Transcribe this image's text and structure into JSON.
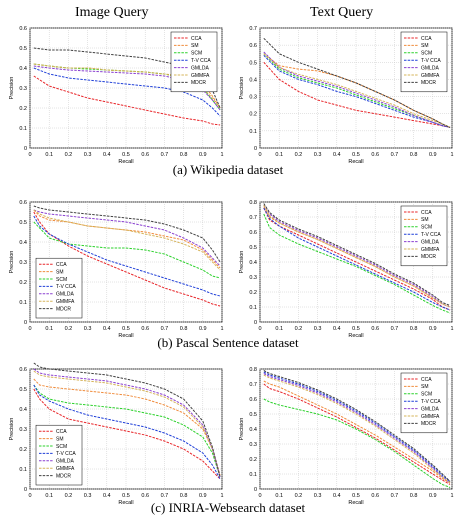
{
  "column_titles": {
    "left": "Image Query",
    "right": "Text Query"
  },
  "captions": [
    "(a) Wikipedia dataset",
    "(b) Pascal Sentence dataset",
    "(c) INRIA-Websearch dataset"
  ],
  "series_styles": [
    {
      "name": "CCA",
      "color": "#e8262a"
    },
    {
      "name": "SM",
      "color": "#f08c3c"
    },
    {
      "name": "SCM",
      "color": "#2bd12b"
    },
    {
      "name": "T-V CCA",
      "color": "#1f3fd8"
    },
    {
      "name": "GMLDA",
      "color": "#8a3fd0"
    },
    {
      "name": "GMMFA",
      "color": "#d6b45a"
    },
    {
      "name": "MDCR",
      "color": "#404040"
    }
  ],
  "chart_data": [
    {
      "type": "line",
      "xlabel": "Recall",
      "ylabel": "Precision",
      "xlim": [
        0,
        1
      ],
      "ylim": [
        0,
        0.6
      ],
      "xticks": [
        "0",
        "0.1",
        "0.2",
        "0.3",
        "0.4",
        "0.5",
        "0.6",
        "0.7",
        "0.8",
        "0.9",
        "1"
      ],
      "yticks": [
        "0",
        "0.1",
        "0.2",
        "0.3",
        "0.4",
        "0.5",
        "0.6"
      ],
      "legend": "top-right",
      "x": [
        0.02,
        0.1,
        0.2,
        0.3,
        0.4,
        0.5,
        0.6,
        0.7,
        0.8,
        0.9,
        0.95,
        0.99
      ],
      "series": [
        {
          "name": "CCA",
          "values": [
            0.36,
            0.31,
            0.28,
            0.25,
            0.23,
            0.21,
            0.19,
            0.17,
            0.15,
            0.135,
            0.12,
            0.115
          ]
        },
        {
          "name": "SM",
          "values": [
            0.42,
            0.41,
            0.4,
            0.4,
            0.39,
            0.385,
            0.38,
            0.37,
            0.36,
            0.32,
            0.26,
            0.2
          ]
        },
        {
          "name": "SCM",
          "values": [
            0.42,
            0.41,
            0.4,
            0.395,
            0.39,
            0.385,
            0.38,
            0.37,
            0.35,
            0.3,
            0.24,
            0.19
          ]
        },
        {
          "name": "T-V CCA",
          "values": [
            0.4,
            0.37,
            0.35,
            0.34,
            0.33,
            0.32,
            0.31,
            0.3,
            0.28,
            0.24,
            0.2,
            0.16
          ]
        },
        {
          "name": "GMLDA",
          "values": [
            0.41,
            0.4,
            0.39,
            0.385,
            0.38,
            0.375,
            0.37,
            0.36,
            0.34,
            0.29,
            0.24,
            0.19
          ]
        },
        {
          "name": "GMMFA",
          "values": [
            0.42,
            0.41,
            0.4,
            0.4,
            0.39,
            0.385,
            0.38,
            0.37,
            0.35,
            0.3,
            0.25,
            0.2
          ]
        },
        {
          "name": "MDCR",
          "values": [
            0.5,
            0.49,
            0.49,
            0.48,
            0.47,
            0.46,
            0.45,
            0.43,
            0.41,
            0.37,
            0.29,
            0.2
          ]
        }
      ]
    },
    {
      "type": "line",
      "xlabel": "Recall",
      "ylabel": "Precision",
      "xlim": [
        0,
        1
      ],
      "ylim": [
        0,
        0.7
      ],
      "xticks": [
        "0",
        "0.1",
        "0.2",
        "0.3",
        "0.4",
        "0.5",
        "0.6",
        "0.7",
        "0.8",
        "0.9",
        "1"
      ],
      "yticks": [
        "0",
        "0.1",
        "0.2",
        "0.3",
        "0.4",
        "0.5",
        "0.6",
        "0.7"
      ],
      "legend": "top-right",
      "x": [
        0.02,
        0.1,
        0.2,
        0.3,
        0.4,
        0.5,
        0.6,
        0.7,
        0.8,
        0.9,
        0.95,
        0.99
      ],
      "series": [
        {
          "name": "CCA",
          "values": [
            0.5,
            0.4,
            0.33,
            0.28,
            0.25,
            0.22,
            0.2,
            0.18,
            0.16,
            0.14,
            0.13,
            0.12
          ]
        },
        {
          "name": "SM",
          "values": [
            0.55,
            0.48,
            0.46,
            0.45,
            0.42,
            0.38,
            0.33,
            0.28,
            0.22,
            0.17,
            0.14,
            0.12
          ]
        },
        {
          "name": "SCM",
          "values": [
            0.55,
            0.46,
            0.41,
            0.38,
            0.35,
            0.31,
            0.27,
            0.23,
            0.19,
            0.15,
            0.13,
            0.12
          ]
        },
        {
          "name": "T-V CCA",
          "values": [
            0.54,
            0.45,
            0.4,
            0.37,
            0.33,
            0.3,
            0.26,
            0.22,
            0.18,
            0.15,
            0.13,
            0.12
          ]
        },
        {
          "name": "GMLDA",
          "values": [
            0.56,
            0.47,
            0.42,
            0.39,
            0.36,
            0.32,
            0.28,
            0.24,
            0.19,
            0.15,
            0.13,
            0.12
          ]
        },
        {
          "name": "GMMFA",
          "values": [
            0.55,
            0.47,
            0.43,
            0.4,
            0.37,
            0.33,
            0.29,
            0.25,
            0.2,
            0.16,
            0.14,
            0.12
          ]
        },
        {
          "name": "MDCR",
          "values": [
            0.64,
            0.55,
            0.5,
            0.46,
            0.42,
            0.38,
            0.33,
            0.28,
            0.22,
            0.17,
            0.14,
            0.12
          ]
        }
      ]
    },
    {
      "type": "line",
      "xlabel": "Recall",
      "ylabel": "Precision",
      "xlim": [
        0,
        1
      ],
      "ylim": [
        0,
        0.6
      ],
      "xticks": [
        "0",
        "0.1",
        "0.2",
        "0.3",
        "0.4",
        "0.5",
        "0.6",
        "0.7",
        "0.8",
        "0.9",
        "1"
      ],
      "yticks": [
        "0",
        "0.1",
        "0.2",
        "0.3",
        "0.4",
        "0.5",
        "0.6"
      ],
      "legend": "bottom-left",
      "x": [
        0.02,
        0.05,
        0.1,
        0.2,
        0.3,
        0.4,
        0.5,
        0.6,
        0.7,
        0.8,
        0.9,
        0.95,
        0.99
      ],
      "series": [
        {
          "name": "CCA",
          "values": [
            0.55,
            0.5,
            0.44,
            0.38,
            0.33,
            0.29,
            0.25,
            0.21,
            0.17,
            0.14,
            0.11,
            0.09,
            0.08
          ]
        },
        {
          "name": "SM",
          "values": [
            0.56,
            0.53,
            0.51,
            0.5,
            0.48,
            0.47,
            0.46,
            0.45,
            0.43,
            0.41,
            0.36,
            0.31,
            0.27
          ]
        },
        {
          "name": "SCM",
          "values": [
            0.5,
            0.47,
            0.42,
            0.39,
            0.38,
            0.37,
            0.37,
            0.36,
            0.34,
            0.3,
            0.26,
            0.23,
            0.22
          ]
        },
        {
          "name": "T-V CCA",
          "values": [
            0.53,
            0.48,
            0.44,
            0.39,
            0.35,
            0.31,
            0.28,
            0.25,
            0.22,
            0.19,
            0.16,
            0.14,
            0.13
          ]
        },
        {
          "name": "GMLDA",
          "values": [
            0.56,
            0.55,
            0.54,
            0.53,
            0.52,
            0.51,
            0.5,
            0.48,
            0.46,
            0.42,
            0.37,
            0.32,
            0.28
          ]
        },
        {
          "name": "GMMFA",
          "values": [
            0.56,
            0.54,
            0.52,
            0.5,
            0.48,
            0.47,
            0.46,
            0.44,
            0.42,
            0.39,
            0.35,
            0.3,
            0.26
          ]
        },
        {
          "name": "MDCR",
          "values": [
            0.58,
            0.57,
            0.56,
            0.55,
            0.54,
            0.53,
            0.52,
            0.51,
            0.49,
            0.46,
            0.42,
            0.36,
            0.3
          ]
        }
      ]
    },
    {
      "type": "line",
      "xlabel": "Recall",
      "ylabel": "Precision",
      "xlim": [
        0,
        1
      ],
      "ylim": [
        0,
        0.8
      ],
      "xticks": [
        "0",
        "0.1",
        "0.2",
        "0.3",
        "0.4",
        "0.5",
        "0.6",
        "0.7",
        "0.8",
        "0.9",
        "1"
      ],
      "yticks": [
        "0",
        "0.1",
        "0.2",
        "0.3",
        "0.4",
        "0.5",
        "0.6",
        "0.7",
        "0.8"
      ],
      "legend": "top-right",
      "x": [
        0.02,
        0.05,
        0.1,
        0.2,
        0.3,
        0.4,
        0.5,
        0.6,
        0.7,
        0.8,
        0.9,
        0.95,
        0.99
      ],
      "series": [
        {
          "name": "CCA",
          "values": [
            0.76,
            0.68,
            0.64,
            0.58,
            0.52,
            0.46,
            0.4,
            0.34,
            0.28,
            0.22,
            0.15,
            0.1,
            0.08
          ]
        },
        {
          "name": "SM",
          "values": [
            0.77,
            0.7,
            0.66,
            0.6,
            0.55,
            0.49,
            0.43,
            0.37,
            0.3,
            0.24,
            0.16,
            0.12,
            0.1
          ]
        },
        {
          "name": "SCM",
          "values": [
            0.72,
            0.63,
            0.58,
            0.52,
            0.47,
            0.42,
            0.37,
            0.31,
            0.25,
            0.18,
            0.11,
            0.08,
            0.06
          ]
        },
        {
          "name": "T-V CCA",
          "values": [
            0.76,
            0.69,
            0.64,
            0.56,
            0.5,
            0.44,
            0.38,
            0.32,
            0.26,
            0.2,
            0.13,
            0.1,
            0.08
          ]
        },
        {
          "name": "GMLDA",
          "values": [
            0.78,
            0.72,
            0.67,
            0.61,
            0.56,
            0.5,
            0.44,
            0.38,
            0.31,
            0.25,
            0.17,
            0.12,
            0.1
          ]
        },
        {
          "name": "GMMFA",
          "values": [
            0.78,
            0.71,
            0.66,
            0.6,
            0.55,
            0.49,
            0.43,
            0.37,
            0.3,
            0.24,
            0.16,
            0.12,
            0.1
          ]
        },
        {
          "name": "MDCR",
          "values": [
            0.79,
            0.73,
            0.68,
            0.62,
            0.57,
            0.51,
            0.45,
            0.39,
            0.32,
            0.26,
            0.18,
            0.13,
            0.11
          ]
        }
      ]
    },
    {
      "type": "line",
      "xlabel": "Recall",
      "ylabel": "Precision",
      "xlim": [
        0,
        1
      ],
      "ylim": [
        0,
        0.6
      ],
      "xticks": [
        "0",
        "0.1",
        "0.2",
        "0.3",
        "0.4",
        "0.5",
        "0.6",
        "0.7",
        "0.8",
        "0.9",
        "1"
      ],
      "yticks": [
        "0",
        "0.1",
        "0.2",
        "0.3",
        "0.4",
        "0.5",
        "0.6"
      ],
      "legend": "bottom-left",
      "x": [
        0.02,
        0.05,
        0.1,
        0.2,
        0.3,
        0.4,
        0.5,
        0.6,
        0.7,
        0.8,
        0.9,
        0.95,
        0.99
      ],
      "series": [
        {
          "name": "CCA",
          "values": [
            0.5,
            0.45,
            0.4,
            0.35,
            0.33,
            0.31,
            0.29,
            0.27,
            0.24,
            0.2,
            0.14,
            0.09,
            0.05
          ]
        },
        {
          "name": "SM",
          "values": [
            0.55,
            0.52,
            0.51,
            0.5,
            0.49,
            0.48,
            0.47,
            0.45,
            0.42,
            0.38,
            0.3,
            0.2,
            0.07
          ]
        },
        {
          "name": "SCM",
          "values": [
            0.52,
            0.48,
            0.45,
            0.43,
            0.42,
            0.41,
            0.4,
            0.38,
            0.36,
            0.32,
            0.26,
            0.18,
            0.06
          ]
        },
        {
          "name": "T-V CCA",
          "values": [
            0.52,
            0.47,
            0.44,
            0.4,
            0.37,
            0.35,
            0.33,
            0.31,
            0.28,
            0.24,
            0.18,
            0.12,
            0.05
          ]
        },
        {
          "name": "GMLDA",
          "values": [
            0.6,
            0.58,
            0.57,
            0.56,
            0.55,
            0.54,
            0.52,
            0.5,
            0.47,
            0.42,
            0.32,
            0.2,
            0.06
          ]
        },
        {
          "name": "GMMFA",
          "values": [
            0.59,
            0.57,
            0.56,
            0.55,
            0.54,
            0.53,
            0.51,
            0.49,
            0.46,
            0.41,
            0.31,
            0.2,
            0.06
          ]
        },
        {
          "name": "MDCR",
          "values": [
            0.63,
            0.61,
            0.6,
            0.59,
            0.58,
            0.57,
            0.55,
            0.53,
            0.5,
            0.45,
            0.34,
            0.21,
            0.06
          ]
        }
      ]
    },
    {
      "type": "line",
      "xlabel": "Recall",
      "ylabel": "Precision",
      "xlim": [
        0,
        1
      ],
      "ylim": [
        0,
        0.8
      ],
      "xticks": [
        "0",
        "0.1",
        "0.2",
        "0.3",
        "0.4",
        "0.5",
        "0.6",
        "0.7",
        "0.8",
        "0.9",
        "1"
      ],
      "yticks": [
        "0",
        "0.1",
        "0.2",
        "0.3",
        "0.4",
        "0.5",
        "0.6",
        "0.7",
        "0.8"
      ],
      "legend": "top-right",
      "x": [
        0.02,
        0.05,
        0.1,
        0.2,
        0.3,
        0.4,
        0.5,
        0.6,
        0.7,
        0.8,
        0.9,
        0.95,
        0.99
      ],
      "series": [
        {
          "name": "CCA",
          "values": [
            0.7,
            0.67,
            0.65,
            0.6,
            0.54,
            0.48,
            0.41,
            0.34,
            0.26,
            0.18,
            0.1,
            0.06,
            0.03
          ]
        },
        {
          "name": "SM",
          "values": [
            0.72,
            0.7,
            0.68,
            0.62,
            0.56,
            0.5,
            0.43,
            0.36,
            0.28,
            0.2,
            0.12,
            0.07,
            0.04
          ]
        },
        {
          "name": "SCM",
          "values": [
            0.6,
            0.58,
            0.56,
            0.53,
            0.5,
            0.46,
            0.4,
            0.33,
            0.25,
            0.16,
            0.07,
            0.03,
            0.01
          ]
        },
        {
          "name": "T-V CCA",
          "values": [
            0.78,
            0.76,
            0.74,
            0.7,
            0.65,
            0.59,
            0.52,
            0.44,
            0.35,
            0.26,
            0.15,
            0.09,
            0.05
          ]
        },
        {
          "name": "GMLDA",
          "values": [
            0.77,
            0.75,
            0.73,
            0.69,
            0.64,
            0.58,
            0.51,
            0.43,
            0.34,
            0.25,
            0.14,
            0.08,
            0.04
          ]
        },
        {
          "name": "GMMFA",
          "values": [
            0.76,
            0.74,
            0.72,
            0.68,
            0.63,
            0.57,
            0.5,
            0.42,
            0.33,
            0.24,
            0.13,
            0.08,
            0.04
          ]
        },
        {
          "name": "MDCR",
          "values": [
            0.79,
            0.77,
            0.75,
            0.71,
            0.66,
            0.6,
            0.53,
            0.45,
            0.36,
            0.27,
            0.16,
            0.1,
            0.05
          ]
        }
      ]
    }
  ]
}
